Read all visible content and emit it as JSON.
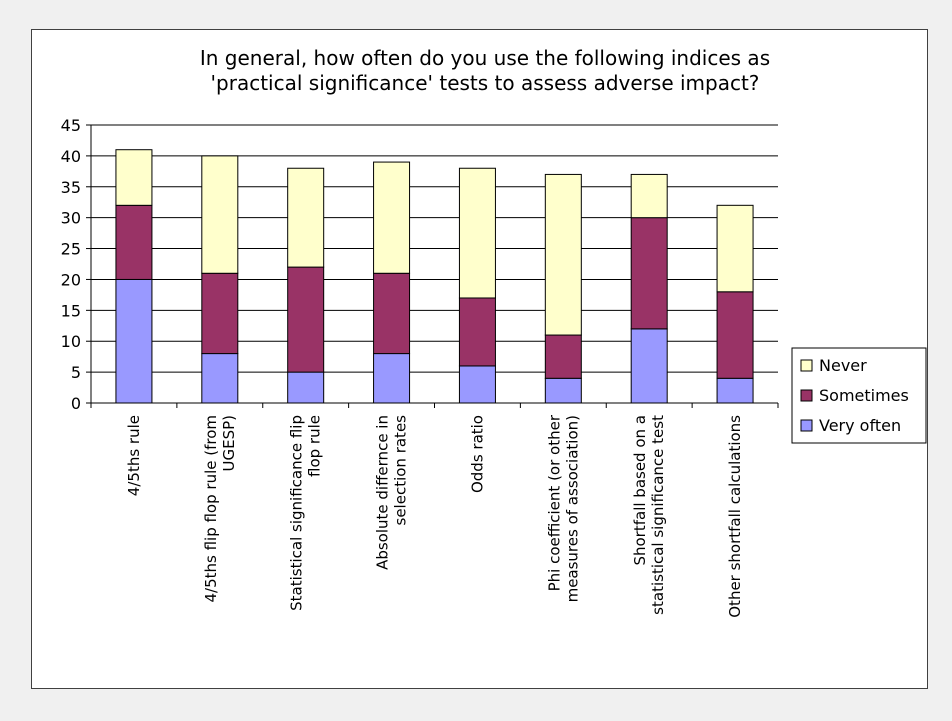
{
  "chart_data": {
    "type": "bar",
    "stacked": true,
    "title_lines": [
      "In general, how often do you use the following indices as",
      "'practical significance' tests to assess adverse impact?"
    ],
    "xlabel": "",
    "ylabel": "",
    "ylim": [
      0,
      45
    ],
    "yticks": [
      0,
      5,
      10,
      15,
      20,
      25,
      30,
      35,
      40,
      45
    ],
    "grid": true,
    "legend_position": "right",
    "categories": [
      [
        "4/5ths rule"
      ],
      [
        "4/5ths flip flop rule (from",
        "UGESP)"
      ],
      [
        "Statistical significance flip",
        "flop rule"
      ],
      [
        "Absolute differnce in",
        "selection rates"
      ],
      [
        "Odds ratio"
      ],
      [
        "Phi coefficient (or other",
        "measures of association)"
      ],
      [
        "Shortfall based on a",
        "statistical significance test"
      ],
      [
        "Other shortfall calculations"
      ]
    ],
    "series": [
      {
        "name": "Very often",
        "color": "#9999ff",
        "values": [
          20,
          8,
          5,
          8,
          6,
          4,
          12,
          4
        ]
      },
      {
        "name": "Sometimes",
        "color": "#993366",
        "values": [
          12,
          13,
          17,
          13,
          11,
          7,
          18,
          14
        ]
      },
      {
        "name": "Never",
        "color": "#ffffcc",
        "values": [
          9,
          19,
          16,
          18,
          21,
          26,
          7,
          14
        ]
      }
    ],
    "legend_order": [
      "Never",
      "Sometimes",
      "Very often"
    ]
  }
}
